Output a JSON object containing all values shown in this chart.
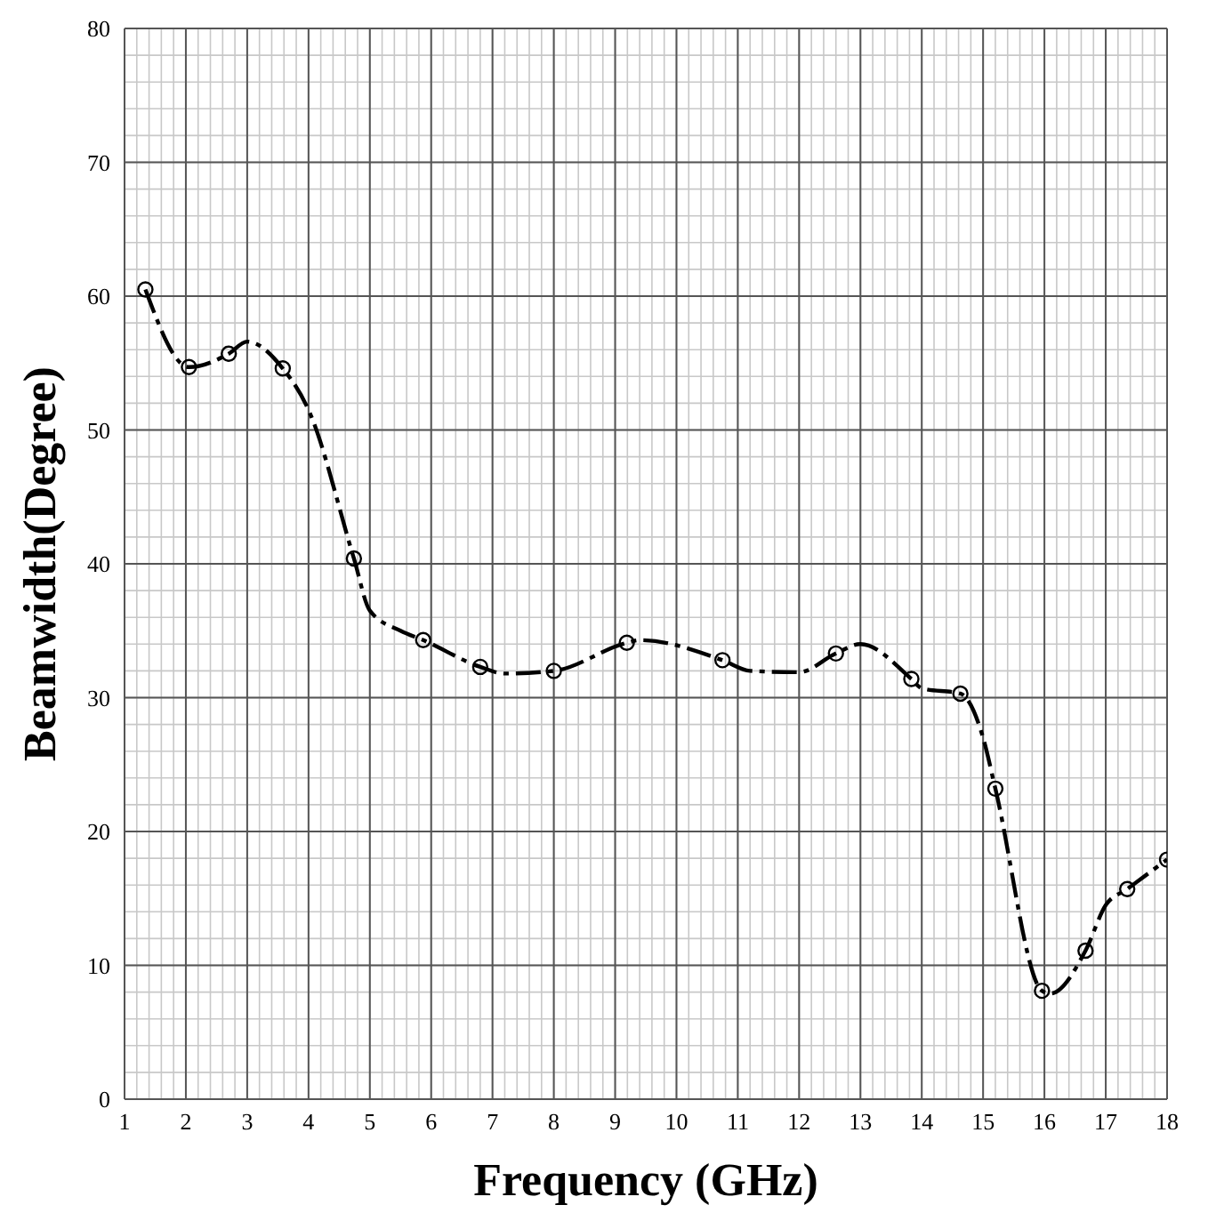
{
  "chart_data": {
    "type": "line",
    "xlabel": "Frequency (GHz)",
    "ylabel": "Beamwidth(Degree)",
    "xlim": [
      1,
      18
    ],
    "xticks": [
      1,
      2,
      3,
      4,
      5,
      6,
      7,
      8,
      9,
      10,
      11,
      12,
      13,
      14,
      15,
      16,
      17,
      18
    ],
    "ylim": [
      0,
      80
    ],
    "yticks": [
      0,
      10,
      20,
      30,
      40,
      50,
      60,
      70,
      80
    ],
    "grid": true,
    "legend": false,
    "series": [
      {
        "color": "#000000",
        "marker": "none",
        "line_style": "dashed",
        "x": [
          1.34,
          2.05,
          2.7,
          3.0,
          3.58,
          4.0,
          4.74,
          5.0,
          5.5,
          5.87,
          6.8,
          7.2,
          8.0,
          9.19,
          9.4,
          10.75,
          11.2,
          12.0,
          12.6,
          13.0,
          13.83,
          14.0,
          14.63,
          15.0,
          15.2,
          15.96,
          16.1,
          16.67,
          17.0,
          17.35,
          18.0
        ],
        "values": [
          60.5,
          54.7,
          55.7,
          56.6,
          54.6,
          51.5,
          40.4,
          36.5,
          35.0,
          34.3,
          32.3,
          31.8,
          32.0,
          34.1,
          34.3,
          32.8,
          32.0,
          31.9,
          33.3,
          34.0,
          31.4,
          30.7,
          30.3,
          27.0,
          23.2,
          8.1,
          7.9,
          11.1,
          14.5,
          15.7,
          17.9
        ]
      },
      {
        "type": "scatter",
        "color": "#000000",
        "marker": "circle",
        "x": [
          1.34,
          2.05,
          2.7,
          3.58,
          4.74,
          5.87,
          6.8,
          8.0,
          9.19,
          10.75,
          12.6,
          13.83,
          14.63,
          15.2,
          15.96,
          16.67,
          17.35,
          18.0
        ],
        "values": [
          60.5,
          54.7,
          55.7,
          54.6,
          40.4,
          34.3,
          32.3,
          32.0,
          34.1,
          32.8,
          33.3,
          31.4,
          30.3,
          23.2,
          8.1,
          11.1,
          15.7,
          17.9
        ]
      }
    ]
  }
}
